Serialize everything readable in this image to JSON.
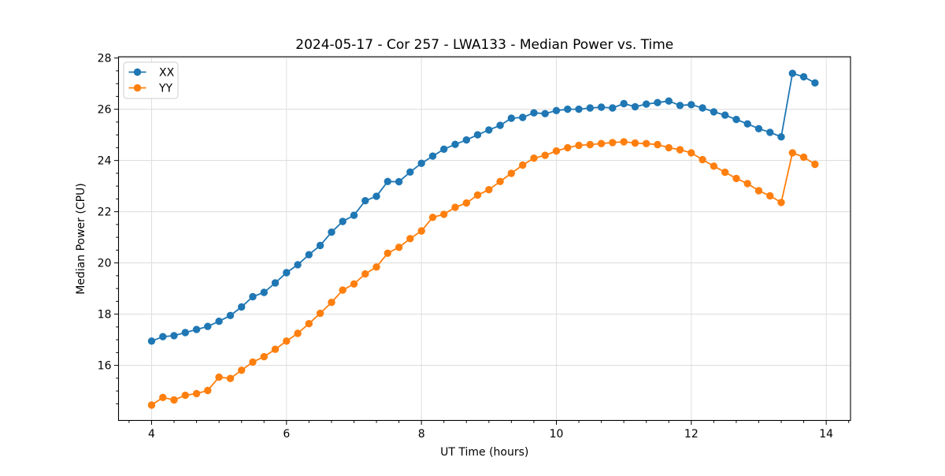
{
  "chart_data": {
    "type": "line",
    "title": "2024-05-17 - Cor 257 - LWA133 - Median Power vs. Time",
    "xlabel": "UT Time (hours)",
    "ylabel": "Median Power (CPU)",
    "xlim": [
      3.51,
      14.36
    ],
    "ylim": [
      13.85,
      28.05
    ],
    "xticks": [
      4,
      6,
      8,
      10,
      12,
      14
    ],
    "yticks": [
      16,
      18,
      20,
      22,
      24,
      26,
      28
    ],
    "x_minor_per_major": 6,
    "y_minor_step": 0.5,
    "grid": "major-both",
    "grid_color": "#dcdcdc",
    "spine_color": "#000000",
    "background": "#ffffff",
    "legend_position": "upper-left",
    "x": [
      4.0,
      4.167,
      4.333,
      4.5,
      4.667,
      4.833,
      5.0,
      5.167,
      5.333,
      5.5,
      5.667,
      5.833,
      6.0,
      6.167,
      6.333,
      6.5,
      6.667,
      6.833,
      7.0,
      7.167,
      7.333,
      7.5,
      7.667,
      7.833,
      8.0,
      8.167,
      8.333,
      8.5,
      8.667,
      8.833,
      9.0,
      9.167,
      9.333,
      9.5,
      9.667,
      9.833,
      10.0,
      10.167,
      10.333,
      10.5,
      10.667,
      10.833,
      11.0,
      11.167,
      11.333,
      11.5,
      11.667,
      11.833,
      12.0,
      12.167,
      12.333,
      12.5,
      12.667,
      12.833,
      13.0,
      13.167,
      13.333,
      13.5,
      13.667,
      13.833
    ],
    "series": [
      {
        "name": "XX",
        "color": "#1f77b4",
        "values": [
          16.95,
          17.12,
          17.16,
          17.28,
          17.4,
          17.52,
          17.72,
          17.95,
          18.28,
          18.68,
          18.85,
          19.22,
          19.62,
          19.93,
          20.32,
          20.68,
          21.2,
          21.62,
          21.86,
          22.43,
          22.6,
          23.18,
          23.17,
          23.55,
          23.89,
          24.17,
          24.44,
          24.63,
          24.8,
          25.0,
          25.19,
          25.37,
          25.65,
          25.68,
          25.86,
          25.83,
          25.95,
          26.0,
          26.0,
          26.05,
          26.08,
          26.05,
          26.22,
          26.1,
          26.2,
          26.26,
          26.32,
          26.15,
          26.18,
          26.05,
          25.9,
          25.77,
          25.6,
          25.43,
          25.24,
          25.1,
          24.92,
          27.4,
          27.27,
          27.03
        ]
      },
      {
        "name": "YY",
        "color": "#ff7f0e",
        "values": [
          14.45,
          14.75,
          14.65,
          14.83,
          14.9,
          15.02,
          15.54,
          15.49,
          15.81,
          16.13,
          16.34,
          16.63,
          16.95,
          17.25,
          17.63,
          18.03,
          18.46,
          18.94,
          19.18,
          19.57,
          19.84,
          20.38,
          20.61,
          20.95,
          21.25,
          21.78,
          21.9,
          22.17,
          22.34,
          22.65,
          22.86,
          23.18,
          23.5,
          23.82,
          24.09,
          24.2,
          24.37,
          24.5,
          24.59,
          24.62,
          24.66,
          24.7,
          24.73,
          24.68,
          24.66,
          24.62,
          24.5,
          24.42,
          24.3,
          24.03,
          23.78,
          23.54,
          23.3,
          23.1,
          22.82,
          22.62,
          22.36,
          24.3,
          24.13,
          23.85
        ]
      }
    ]
  }
}
